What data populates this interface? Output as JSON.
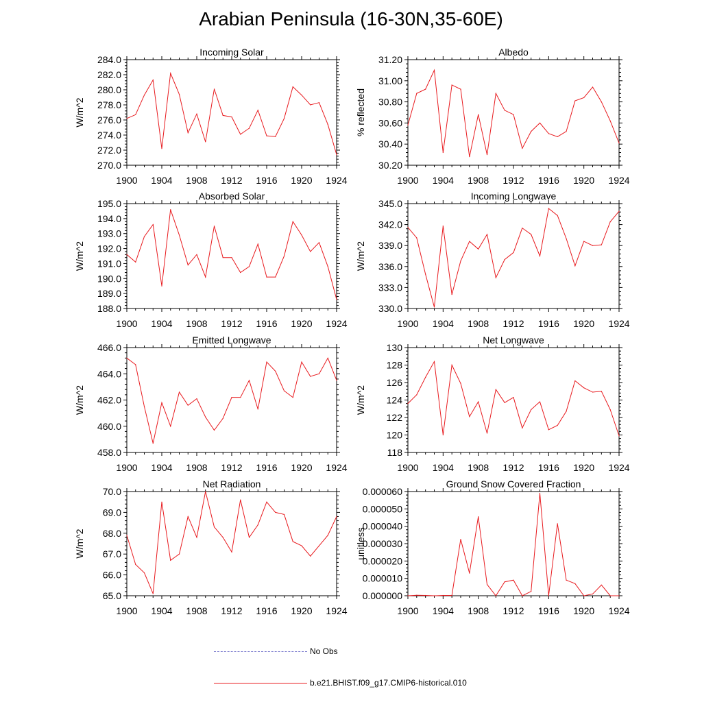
{
  "title": "Arabian Peninsula (16-30N,35-60E)",
  "legend": [
    {
      "label": "No Obs",
      "color": "#7777cc",
      "style": "dashed"
    },
    {
      "label": "b.e21.BHIST.f09_g17.CMIP6-historical.010",
      "color": "#e8191d",
      "style": "solid"
    }
  ],
  "series_color": "#e8191d",
  "chart_data": [
    {
      "type": "line",
      "title": "Incoming Solar",
      "ylabel": "W/m^2",
      "xlim": [
        1900,
        1924
      ],
      "ylim": [
        270,
        284
      ],
      "xticks": [
        "1900",
        "1904",
        "1908",
        "1912",
        "1916",
        "1920",
        "1924"
      ],
      "yticks": [
        "270.0",
        "272.0",
        "274.0",
        "276.0",
        "278.0",
        "280.0",
        "282.0",
        "284.0"
      ],
      "x": [
        1900,
        1901,
        1902,
        1903,
        1904,
        1905,
        1906,
        1907,
        1908,
        1909,
        1910,
        1911,
        1912,
        1913,
        1914,
        1915,
        1916,
        1917,
        1918,
        1919,
        1920,
        1921,
        1922,
        1923,
        1924
      ],
      "values": [
        276.2,
        276.7,
        279.3,
        281.3,
        272.2,
        282.2,
        279.4,
        274.3,
        276.8,
        273.1,
        280.1,
        276.6,
        276.4,
        274.1,
        274.9,
        277.3,
        273.9,
        273.8,
        276.2,
        280.4,
        279.3,
        278.0,
        278.3,
        275.4,
        271.4
      ]
    },
    {
      "type": "line",
      "title": "Albedo",
      "ylabel": "% reflected",
      "xlim": [
        1900,
        1924
      ],
      "ylim": [
        30.2,
        31.2
      ],
      "xticks": [
        "1900",
        "1904",
        "1908",
        "1912",
        "1916",
        "1920",
        "1924"
      ],
      "yticks": [
        "30.20",
        "30.40",
        "30.60",
        "30.80",
        "31.00",
        "31.20"
      ],
      "x": [
        1900,
        1901,
        1902,
        1903,
        1904,
        1905,
        1906,
        1907,
        1908,
        1909,
        1910,
        1911,
        1912,
        1913,
        1914,
        1915,
        1916,
        1917,
        1918,
        1919,
        1920,
        1921,
        1922,
        1923,
        1924
      ],
      "values": [
        30.58,
        30.88,
        30.92,
        31.1,
        30.32,
        30.96,
        30.92,
        30.28,
        30.68,
        30.3,
        30.88,
        30.72,
        30.68,
        30.36,
        30.52,
        30.6,
        30.5,
        30.47,
        30.52,
        30.81,
        30.84,
        30.94,
        30.8,
        30.62,
        30.41
      ]
    },
    {
      "type": "line",
      "title": "Absorbed Solar",
      "ylabel": "W/m^2",
      "xlim": [
        1900,
        1924
      ],
      "ylim": [
        188,
        195
      ],
      "xticks": [
        "1900",
        "1904",
        "1908",
        "1912",
        "1916",
        "1920",
        "1924"
      ],
      "yticks": [
        "188.0",
        "189.0",
        "190.0",
        "191.0",
        "192.0",
        "193.0",
        "194.0",
        "195.0"
      ],
      "x": [
        1900,
        1901,
        1902,
        1903,
        1904,
        1905,
        1906,
        1907,
        1908,
        1909,
        1910,
        1911,
        1912,
        1913,
        1914,
        1915,
        1916,
        1917,
        1918,
        1919,
        1920,
        1921,
        1922,
        1923,
        1924
      ],
      "values": [
        191.6,
        191.1,
        192.8,
        193.6,
        189.5,
        194.6,
        192.9,
        190.9,
        191.6,
        190.1,
        193.5,
        191.4,
        191.4,
        190.4,
        190.8,
        192.3,
        190.1,
        190.1,
        191.5,
        193.8,
        192.9,
        191.8,
        192.4,
        190.8,
        188.6
      ]
    },
    {
      "type": "line",
      "title": "Incoming Longwave",
      "ylabel": "W/m^2",
      "xlim": [
        1900,
        1924
      ],
      "ylim": [
        330,
        345
      ],
      "xticks": [
        "1900",
        "1904",
        "1908",
        "1912",
        "1916",
        "1920",
        "1924"
      ],
      "yticks": [
        "330.0",
        "333.0",
        "336.0",
        "339.0",
        "342.0",
        "345.0"
      ],
      "x": [
        1900,
        1901,
        1902,
        1903,
        1904,
        1905,
        1906,
        1907,
        1908,
        1909,
        1910,
        1911,
        1912,
        1913,
        1914,
        1915,
        1916,
        1917,
        1918,
        1919,
        1920,
        1921,
        1922,
        1923,
        1924
      ],
      "values": [
        341.6,
        340.1,
        334.9,
        330.2,
        341.8,
        332.0,
        336.8,
        339.6,
        338.5,
        340.6,
        334.4,
        337.0,
        338.0,
        341.5,
        340.6,
        337.5,
        344.3,
        343.3,
        340.0,
        336.1,
        339.6,
        339.0,
        339.1,
        342.4,
        343.9
      ]
    },
    {
      "type": "line",
      "title": "Emitted Longwave",
      "ylabel": "W/m^2",
      "xlim": [
        1900,
        1924
      ],
      "ylim": [
        458,
        466
      ],
      "xticks": [
        "1900",
        "1904",
        "1908",
        "1912",
        "1916",
        "1920",
        "1924"
      ],
      "yticks": [
        "458.0",
        "460.0",
        "462.0",
        "464.0",
        "466.0"
      ],
      "x": [
        1900,
        1901,
        1902,
        1903,
        1904,
        1905,
        1906,
        1907,
        1908,
        1909,
        1910,
        1911,
        1912,
        1913,
        1914,
        1915,
        1916,
        1917,
        1918,
        1919,
        1920,
        1921,
        1922,
        1923,
        1924
      ],
      "values": [
        465.2,
        464.7,
        461.5,
        458.7,
        461.8,
        460.0,
        462.6,
        461.6,
        462.1,
        460.7,
        459.7,
        460.6,
        462.2,
        462.2,
        463.5,
        461.3,
        464.9,
        464.2,
        462.7,
        462.2,
        464.9,
        463.8,
        464.0,
        465.2,
        463.5
      ]
    },
    {
      "type": "line",
      "title": "Net Longwave",
      "ylabel": "W/m^2",
      "xlim": [
        1900,
        1924
      ],
      "ylim": [
        118,
        130
      ],
      "xticks": [
        "1900",
        "1904",
        "1908",
        "1912",
        "1916",
        "1920",
        "1924"
      ],
      "yticks": [
        "118",
        "120",
        "122",
        "124",
        "126",
        "128",
        "130"
      ],
      "x": [
        1900,
        1901,
        1902,
        1903,
        1904,
        1905,
        1906,
        1907,
        1908,
        1909,
        1910,
        1911,
        1912,
        1913,
        1914,
        1915,
        1916,
        1917,
        1918,
        1919,
        1920,
        1921,
        1922,
        1923,
        1924
      ],
      "values": [
        123.6,
        124.6,
        126.6,
        128.4,
        120.0,
        128.0,
        125.9,
        122.1,
        123.8,
        120.2,
        125.2,
        123.7,
        124.3,
        120.8,
        122.9,
        123.8,
        120.6,
        121.1,
        122.7,
        126.2,
        125.4,
        124.9,
        125.0,
        122.9,
        119.9
      ]
    },
    {
      "type": "line",
      "title": "Net Radiation",
      "ylabel": "W/m^2",
      "xlim": [
        1900,
        1924
      ],
      "ylim": [
        65,
        70
      ],
      "xticks": [
        "1900",
        "1904",
        "1908",
        "1912",
        "1916",
        "1920",
        "1924"
      ],
      "yticks": [
        "65.0",
        "66.0",
        "67.0",
        "68.0",
        "69.0",
        "70.0"
      ],
      "x": [
        1900,
        1901,
        1902,
        1903,
        1904,
        1905,
        1906,
        1907,
        1908,
        1909,
        1910,
        1911,
        1912,
        1913,
        1914,
        1915,
        1916,
        1917,
        1918,
        1919,
        1920,
        1921,
        1922,
        1923,
        1924
      ],
      "values": [
        67.9,
        66.5,
        66.1,
        65.1,
        69.5,
        66.7,
        67.0,
        68.8,
        67.8,
        70.0,
        68.3,
        67.8,
        67.1,
        69.6,
        67.8,
        68.4,
        69.5,
        69.0,
        68.9,
        67.6,
        67.4,
        66.9,
        67.4,
        67.9,
        68.8
      ]
    },
    {
      "type": "line",
      "title": "Ground Snow Covered Fraction",
      "ylabel": "unitless",
      "xlim": [
        1900,
        1924
      ],
      "ylim": [
        0,
        6e-05
      ],
      "xticks": [
        "1900",
        "1904",
        "1908",
        "1912",
        "1916",
        "1920",
        "1924"
      ],
      "yticks": [
        "0.000000",
        "0.000010",
        "0.000020",
        "0.000030",
        "0.000040",
        "0.000050",
        "0.000060"
      ],
      "x": [
        1900,
        1901,
        1902,
        1903,
        1904,
        1905,
        1906,
        1907,
        1908,
        1909,
        1910,
        1911,
        1912,
        1913,
        1914,
        1915,
        1916,
        1917,
        1918,
        1919,
        1920,
        1921,
        1922,
        1923,
        1924
      ],
      "values": [
        0.0,
        3e-07,
        2e-07,
        0.0,
        2e-07,
        2e-07,
        3.25e-05,
        1.3e-05,
        4.55e-05,
        6.5e-06,
        0.0,
        8e-06,
        9e-06,
        0.0,
        2.5e-06,
        5.9e-05,
        0.0,
        4.15e-05,
        9e-06,
        7e-06,
        0.0,
        1e-06,
        6.2e-06,
        0.0,
        0.0
      ]
    }
  ]
}
